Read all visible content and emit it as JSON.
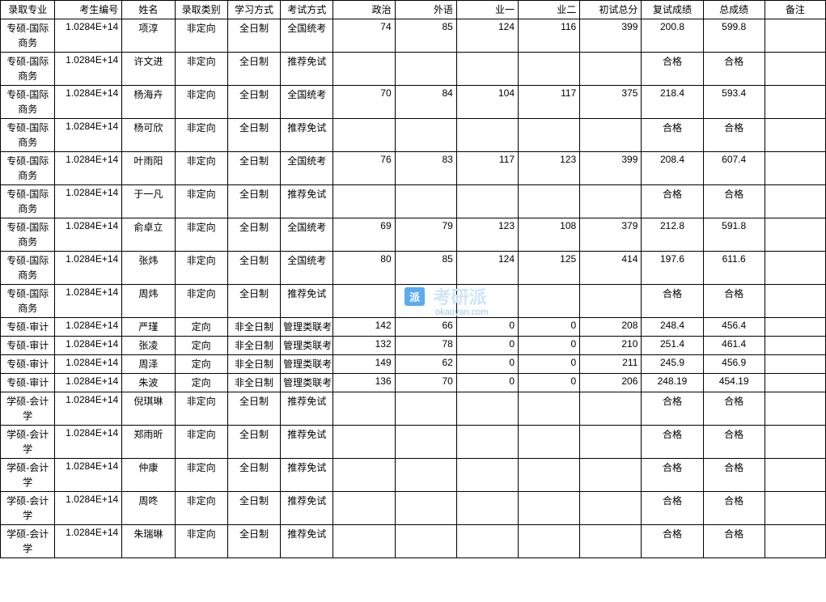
{
  "watermark": {
    "badge_text": "派",
    "main_text": "考研派",
    "url_text": "okaoyan.com",
    "badge_bg": "#4aa3f0",
    "text_color": "#cfe5f7"
  },
  "table": {
    "columns": [
      {
        "key": "major",
        "label": "录取专业",
        "class": "col-major"
      },
      {
        "key": "id",
        "label": "考生编号",
        "class": "col-id"
      },
      {
        "key": "name",
        "label": "姓名",
        "class": "col-name"
      },
      {
        "key": "type",
        "label": "录取类别",
        "class": "col-type"
      },
      {
        "key": "mode",
        "label": "学习方式",
        "class": "col-mode"
      },
      {
        "key": "exam",
        "label": "考试方式",
        "class": "col-exam"
      },
      {
        "key": "zz",
        "label": "政治",
        "class": "col-zz"
      },
      {
        "key": "wy",
        "label": "外语",
        "class": "col-wy"
      },
      {
        "key": "y1",
        "label": "业一",
        "class": "col-y1"
      },
      {
        "key": "y2",
        "label": "业二",
        "class": "col-y2"
      },
      {
        "key": "cs",
        "label": "初试总分",
        "class": "col-cs"
      },
      {
        "key": "fs",
        "label": "复试成绩",
        "class": "col-fs"
      },
      {
        "key": "zc",
        "label": "总成绩",
        "class": "col-zc"
      },
      {
        "key": "bz",
        "label": "备注",
        "class": "col-bz"
      }
    ],
    "rows": [
      {
        "tall": true,
        "major": "专硕-国际商务",
        "id": "1.0284E+14",
        "name": "项淳",
        "type": "非定向",
        "mode": "全日制",
        "exam": "全国统考",
        "zz": "74",
        "wy": "85",
        "y1": "124",
        "y2": "116",
        "cs": "399",
        "fs": "200.8",
        "zc": "599.8",
        "bz": ""
      },
      {
        "tall": true,
        "major": "专硕-国际商务",
        "id": "1.0284E+14",
        "name": "许文进",
        "type": "非定向",
        "mode": "全日制",
        "exam": "推荐免试",
        "zz": "",
        "wy": "",
        "y1": "",
        "y2": "",
        "cs": "",
        "fs": "合格",
        "zc": "合格",
        "bz": ""
      },
      {
        "tall": true,
        "major": "专硕-国际商务",
        "id": "1.0284E+14",
        "name": "杨海卉",
        "type": "非定向",
        "mode": "全日制",
        "exam": "全国统考",
        "zz": "70",
        "wy": "84",
        "y1": "104",
        "y2": "117",
        "cs": "375",
        "fs": "218.4",
        "zc": "593.4",
        "bz": ""
      },
      {
        "tall": true,
        "major": "专硕-国际商务",
        "id": "1.0284E+14",
        "name": "杨可欣",
        "type": "非定向",
        "mode": "全日制",
        "exam": "推荐免试",
        "zz": "",
        "wy": "",
        "y1": "",
        "y2": "",
        "cs": "",
        "fs": "合格",
        "zc": "合格",
        "bz": ""
      },
      {
        "tall": true,
        "major": "专硕-国际商务",
        "id": "1.0284E+14",
        "name": "叶雨阳",
        "type": "非定向",
        "mode": "全日制",
        "exam": "全国统考",
        "zz": "76",
        "wy": "83",
        "y1": "117",
        "y2": "123",
        "cs": "399",
        "fs": "208.4",
        "zc": "607.4",
        "bz": ""
      },
      {
        "tall": true,
        "major": "专硕-国际商务",
        "id": "1.0284E+14",
        "name": "于一凡",
        "type": "非定向",
        "mode": "全日制",
        "exam": "推荐免试",
        "zz": "",
        "wy": "",
        "y1": "",
        "y2": "",
        "cs": "",
        "fs": "合格",
        "zc": "合格",
        "bz": ""
      },
      {
        "tall": true,
        "major": "专硕-国际商务",
        "id": "1.0284E+14",
        "name": "俞卓立",
        "type": "非定向",
        "mode": "全日制",
        "exam": "全国统考",
        "zz": "69",
        "wy": "79",
        "y1": "123",
        "y2": "108",
        "cs": "379",
        "fs": "212.8",
        "zc": "591.8",
        "bz": ""
      },
      {
        "tall": true,
        "major": "专硕-国际商务",
        "id": "1.0284E+14",
        "name": "张炜",
        "type": "非定向",
        "mode": "全日制",
        "exam": "全国统考",
        "zz": "80",
        "wy": "85",
        "y1": "124",
        "y2": "125",
        "cs": "414",
        "fs": "197.6",
        "zc": "611.6",
        "bz": ""
      },
      {
        "tall": true,
        "major": "专硕-国际商务",
        "id": "1.0284E+14",
        "name": "周炜",
        "type": "非定向",
        "mode": "全日制",
        "exam": "推荐免试",
        "zz": "",
        "wy": "",
        "y1": "",
        "y2": "",
        "cs": "",
        "fs": "合格",
        "zc": "合格",
        "bz": ""
      },
      {
        "tall": false,
        "major": "专硕-审计",
        "id": "1.0284E+14",
        "name": "严瑾",
        "type": "定向",
        "mode": "非全日制",
        "exam": "管理类联考",
        "zz": "142",
        "wy": "66",
        "y1": "0",
        "y2": "0",
        "cs": "208",
        "fs": "248.4",
        "zc": "456.4",
        "bz": ""
      },
      {
        "tall": false,
        "major": "专硕-审计",
        "id": "1.0284E+14",
        "name": "张凌",
        "type": "定向",
        "mode": "非全日制",
        "exam": "管理类联考",
        "zz": "132",
        "wy": "78",
        "y1": "0",
        "y2": "0",
        "cs": "210",
        "fs": "251.4",
        "zc": "461.4",
        "bz": ""
      },
      {
        "tall": false,
        "major": "专硕-审计",
        "id": "1.0284E+14",
        "name": "周泽",
        "type": "定向",
        "mode": "非全日制",
        "exam": "管理类联考",
        "zz": "149",
        "wy": "62",
        "y1": "0",
        "y2": "0",
        "cs": "211",
        "fs": "245.9",
        "zc": "456.9",
        "bz": ""
      },
      {
        "tall": false,
        "major": "专硕-审计",
        "id": "1.0284E+14",
        "name": "朱波",
        "type": "定向",
        "mode": "非全日制",
        "exam": "管理类联考",
        "zz": "136",
        "wy": "70",
        "y1": "0",
        "y2": "0",
        "cs": "206",
        "fs": "248.19",
        "zc": "454.19",
        "bz": ""
      },
      {
        "tall": true,
        "major": "学硕-会计学",
        "id": "1.0284E+14",
        "name": "倪琪琳",
        "type": "非定向",
        "mode": "全日制",
        "exam": "推荐免试",
        "zz": "",
        "wy": "",
        "y1": "",
        "y2": "",
        "cs": "",
        "fs": "合格",
        "zc": "合格",
        "bz": ""
      },
      {
        "tall": true,
        "major": "学硕-会计学",
        "id": "1.0284E+14",
        "name": "郑雨昕",
        "type": "非定向",
        "mode": "全日制",
        "exam": "推荐免试",
        "zz": "",
        "wy": "",
        "y1": "",
        "y2": "",
        "cs": "",
        "fs": "合格",
        "zc": "合格",
        "bz": ""
      },
      {
        "tall": true,
        "major": "学硕-会计学",
        "id": "1.0284E+14",
        "name": "仲康",
        "type": "非定向",
        "mode": "全日制",
        "exam": "推荐免试",
        "zz": "",
        "wy": "",
        "y1": "",
        "y2": "",
        "cs": "",
        "fs": "合格",
        "zc": "合格",
        "bz": ""
      },
      {
        "tall": true,
        "major": "学硕-会计学",
        "id": "1.0284E+14",
        "name": "周咚",
        "type": "非定向",
        "mode": "全日制",
        "exam": "推荐免试",
        "zz": "",
        "wy": "",
        "y1": "",
        "y2": "",
        "cs": "",
        "fs": "合格",
        "zc": "合格",
        "bz": ""
      },
      {
        "tall": true,
        "major": "学硕-会计学",
        "id": "1.0284E+14",
        "name": "朱瑞琳",
        "type": "非定向",
        "mode": "全日制",
        "exam": "推荐免试",
        "zz": "",
        "wy": "",
        "y1": "",
        "y2": "",
        "cs": "",
        "fs": "合格",
        "zc": "合格",
        "bz": ""
      }
    ]
  }
}
